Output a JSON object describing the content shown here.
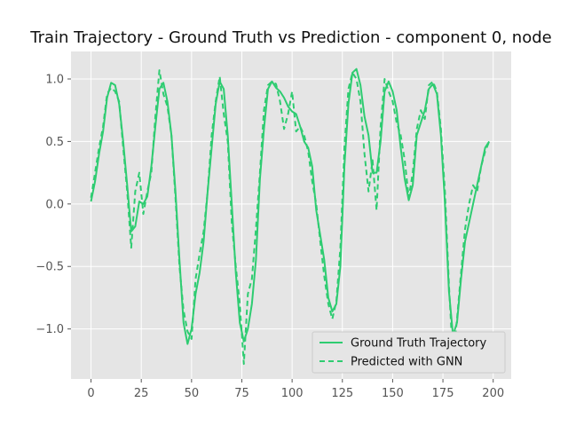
{
  "chart_data": {
    "type": "line",
    "title": "Train Trajectory - Ground Truth vs Prediction - component 0, node",
    "xlabel": "",
    "ylabel": "",
    "xlim": [
      -9.95,
      208.95
    ],
    "ylim": [
      -1.4,
      1.22
    ],
    "xticks": [
      0,
      25,
      50,
      75,
      100,
      125,
      150,
      175,
      200
    ],
    "yticks": [
      -1.0,
      -0.5,
      0.0,
      0.5,
      1.0
    ],
    "xtick_labels": [
      "0",
      "25",
      "50",
      "75",
      "100",
      "125",
      "150",
      "175",
      "200"
    ],
    "ytick_labels": [
      "−1.0",
      "−0.5",
      "0.0",
      "0.5",
      "1.0"
    ],
    "grid": true,
    "legend_position": "bottom-right",
    "series": [
      {
        "name": "Ground Truth Trajectory",
        "color": "#2ecc71",
        "style": "solid",
        "x": [
          0,
          2,
          4,
          6,
          8,
          10,
          12,
          14,
          16,
          18,
          20,
          22,
          24,
          26,
          28,
          30,
          32,
          34,
          36,
          38,
          40,
          42,
          44,
          46,
          48,
          50,
          52,
          54,
          56,
          58,
          60,
          62,
          64,
          66,
          68,
          70,
          72,
          74,
          76,
          78,
          80,
          82,
          84,
          86,
          88,
          90,
          92,
          94,
          96,
          98,
          100,
          102,
          104,
          106,
          108,
          110,
          112,
          114,
          116,
          118,
          120,
          122,
          124,
          126,
          128,
          130,
          132,
          134,
          136,
          138,
          140,
          142,
          144,
          146,
          148,
          150,
          152,
          154,
          156,
          158,
          160,
          162,
          164,
          166,
          168,
          170,
          172,
          174,
          176,
          178,
          180,
          182,
          184,
          186,
          188,
          190,
          192,
          194,
          196,
          198
        ],
        "y": [
          0.02,
          0.18,
          0.4,
          0.58,
          0.85,
          0.97,
          0.95,
          0.8,
          0.5,
          0.15,
          -0.22,
          -0.18,
          0.02,
          0.0,
          0.06,
          0.3,
          0.62,
          0.92,
          0.97,
          0.82,
          0.55,
          0.1,
          -0.45,
          -0.95,
          -1.12,
          -1.0,
          -0.72,
          -0.55,
          -0.3,
          0.1,
          0.45,
          0.8,
          0.98,
          0.92,
          0.55,
          0.0,
          -0.55,
          -0.95,
          -1.1,
          -1.0,
          -0.8,
          -0.45,
          0.2,
          0.6,
          0.92,
          0.98,
          0.93,
          0.9,
          0.85,
          0.78,
          0.74,
          0.72,
          0.62,
          0.5,
          0.45,
          0.3,
          -0.05,
          -0.25,
          -0.45,
          -0.75,
          -0.86,
          -0.8,
          -0.5,
          0.3,
          0.8,
          1.05,
          1.08,
          0.95,
          0.7,
          0.55,
          0.25,
          0.25,
          0.5,
          0.9,
          0.98,
          0.9,
          0.75,
          0.45,
          0.2,
          0.03,
          0.15,
          0.55,
          0.65,
          0.75,
          0.92,
          0.96,
          0.88,
          0.55,
          0.0,
          -0.7,
          -1.05,
          -0.95,
          -0.6,
          -0.3,
          -0.15,
          0.0,
          0.15,
          0.3,
          0.45,
          0.5
        ]
      },
      {
        "name": "Predicted with GNN",
        "color": "#2ecc71",
        "style": "dashed",
        "x": [
          0,
          2,
          4,
          6,
          8,
          10,
          12,
          14,
          16,
          18,
          20,
          22,
          24,
          26,
          28,
          30,
          32,
          34,
          36,
          38,
          40,
          42,
          44,
          46,
          48,
          50,
          52,
          54,
          56,
          58,
          60,
          62,
          64,
          66,
          68,
          70,
          72,
          74,
          76,
          78,
          80,
          82,
          84,
          86,
          88,
          90,
          92,
          94,
          96,
          98,
          100,
          102,
          104,
          106,
          108,
          110,
          112,
          114,
          116,
          118,
          120,
          122,
          124,
          126,
          128,
          130,
          132,
          134,
          136,
          138,
          140,
          142,
          144,
          146,
          148,
          150,
          152,
          154,
          156,
          158,
          160,
          162,
          164,
          166,
          168,
          170,
          172,
          174,
          176,
          178,
          180,
          182,
          184,
          186,
          188,
          190,
          192,
          194,
          196,
          198
        ],
        "y": [
          0.05,
          0.25,
          0.45,
          0.62,
          0.88,
          0.93,
          0.9,
          0.82,
          0.45,
          0.1,
          -0.35,
          0.1,
          0.25,
          -0.08,
          0.1,
          0.25,
          0.7,
          1.07,
          0.88,
          0.78,
          0.55,
          0.05,
          -0.5,
          -0.85,
          -1.02,
          -1.08,
          -0.6,
          -0.4,
          -0.22,
          0.1,
          0.55,
          0.82,
          1.02,
          0.72,
          0.5,
          -0.15,
          -0.5,
          -0.8,
          -1.28,
          -0.72,
          -0.6,
          -0.2,
          0.25,
          0.75,
          0.95,
          0.98,
          0.96,
          0.82,
          0.6,
          0.72,
          0.9,
          0.58,
          0.62,
          0.55,
          0.42,
          0.18,
          0.0,
          -0.3,
          -0.58,
          -0.8,
          -0.92,
          -0.78,
          -0.35,
          0.45,
          0.92,
          1.05,
          1.0,
          0.82,
          0.4,
          0.1,
          0.35,
          -0.05,
          0.62,
          1.0,
          0.9,
          0.82,
          0.65,
          0.55,
          0.35,
          0.05,
          0.25,
          0.6,
          0.75,
          0.68,
          0.95,
          0.98,
          0.9,
          0.6,
          0.1,
          -0.65,
          -1.25,
          -0.92,
          -0.55,
          -0.2,
          0.0,
          0.15,
          0.1,
          0.3,
          0.42,
          0.5
        ]
      }
    ]
  }
}
